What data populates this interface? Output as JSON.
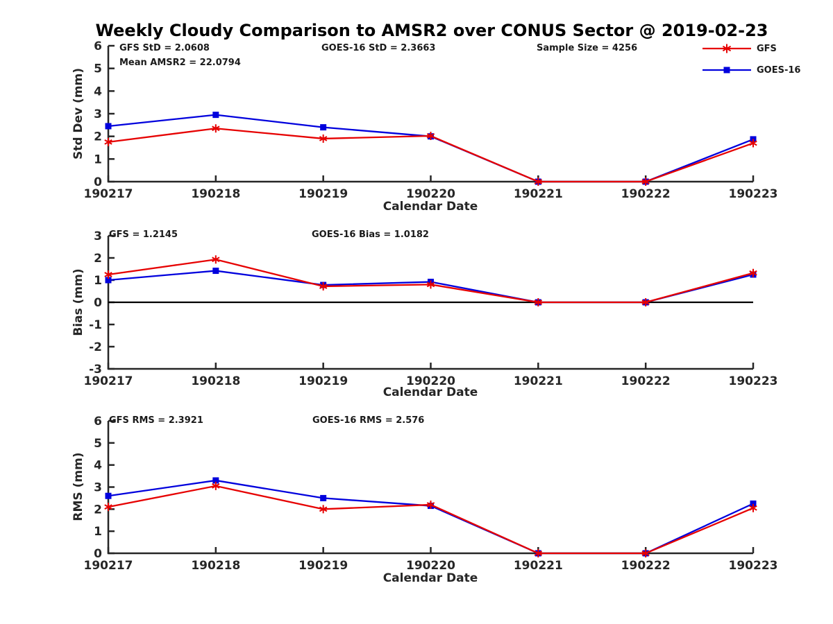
{
  "title": "Weekly Cloudy Comparison to AMSR2 over CONUS Sector @ 2019-02-23",
  "colors": {
    "gfs": "#e60000",
    "goes16": "#0000dd",
    "axis": "#262626",
    "text": "#1a1a1a",
    "zero_line": "#000000"
  },
  "legend": {
    "items": [
      {
        "label": "GFS",
        "color": "#e60000",
        "marker": "asterisk-icon"
      },
      {
        "label": "GOES-16",
        "color": "#0000dd",
        "marker": "square-icon"
      }
    ]
  },
  "chart_data": [
    {
      "type": "line",
      "ylabel": "Std Dev (mm)",
      "xlabel": "Calendar Date",
      "ylim": [
        0,
        6
      ],
      "yticks": [
        0,
        1,
        2,
        3,
        4,
        5,
        6
      ],
      "grid": false,
      "zero_line": false,
      "categories": [
        "190217",
        "190218",
        "190219",
        "190220",
        "190221",
        "190222",
        "190223"
      ],
      "series": [
        {
          "name": "GFS",
          "color": "#e60000",
          "marker": "asterisk",
          "values": [
            1.75,
            2.35,
            1.9,
            2.02,
            0,
            0,
            1.7
          ]
        },
        {
          "name": "GOES-16",
          "color": "#0000dd",
          "marker": "square",
          "values": [
            2.45,
            2.95,
            2.4,
            2.0,
            0,
            0,
            1.87
          ]
        }
      ],
      "annotations": [
        "GFS StD = 2.0608",
        "Mean AMSR2 = 22.0794",
        "GOES-16 StD = 2.3663",
        "Sample Size = 4256"
      ]
    },
    {
      "type": "line",
      "ylabel": "Bias (mm)",
      "xlabel": "Calendar Date",
      "ylim": [
        -3,
        3
      ],
      "yticks": [
        -3,
        -2,
        -1,
        0,
        1,
        2,
        3
      ],
      "grid": false,
      "zero_line": true,
      "categories": [
        "190217",
        "190218",
        "190219",
        "190220",
        "190221",
        "190222",
        "190223"
      ],
      "series": [
        {
          "name": "GFS",
          "color": "#e60000",
          "marker": "asterisk",
          "values": [
            1.25,
            1.93,
            0.72,
            0.8,
            0,
            0,
            1.32
          ]
        },
        {
          "name": "GOES-16",
          "color": "#0000dd",
          "marker": "square",
          "values": [
            1.0,
            1.42,
            0.78,
            0.92,
            0,
            0,
            1.25
          ]
        }
      ],
      "annotations": [
        "GFS = 1.2145",
        "GOES-16 Bias = 1.0182"
      ]
    },
    {
      "type": "line",
      "ylabel": "RMS (mm)",
      "xlabel": "Calendar Date",
      "ylim": [
        0,
        6
      ],
      "yticks": [
        0,
        1,
        2,
        3,
        4,
        5,
        6
      ],
      "grid": false,
      "zero_line": false,
      "categories": [
        "190217",
        "190218",
        "190219",
        "190220",
        "190221",
        "190222",
        "190223"
      ],
      "series": [
        {
          "name": "GFS",
          "color": "#e60000",
          "marker": "asterisk",
          "values": [
            2.1,
            3.05,
            2.0,
            2.2,
            0,
            0,
            2.05
          ]
        },
        {
          "name": "GOES-16",
          "color": "#0000dd",
          "marker": "square",
          "values": [
            2.6,
            3.3,
            2.5,
            2.15,
            0,
            0,
            2.25
          ]
        }
      ],
      "annotations": [
        "GFS RMS = 2.3921",
        "GOES-16 RMS = 2.576"
      ]
    }
  ]
}
